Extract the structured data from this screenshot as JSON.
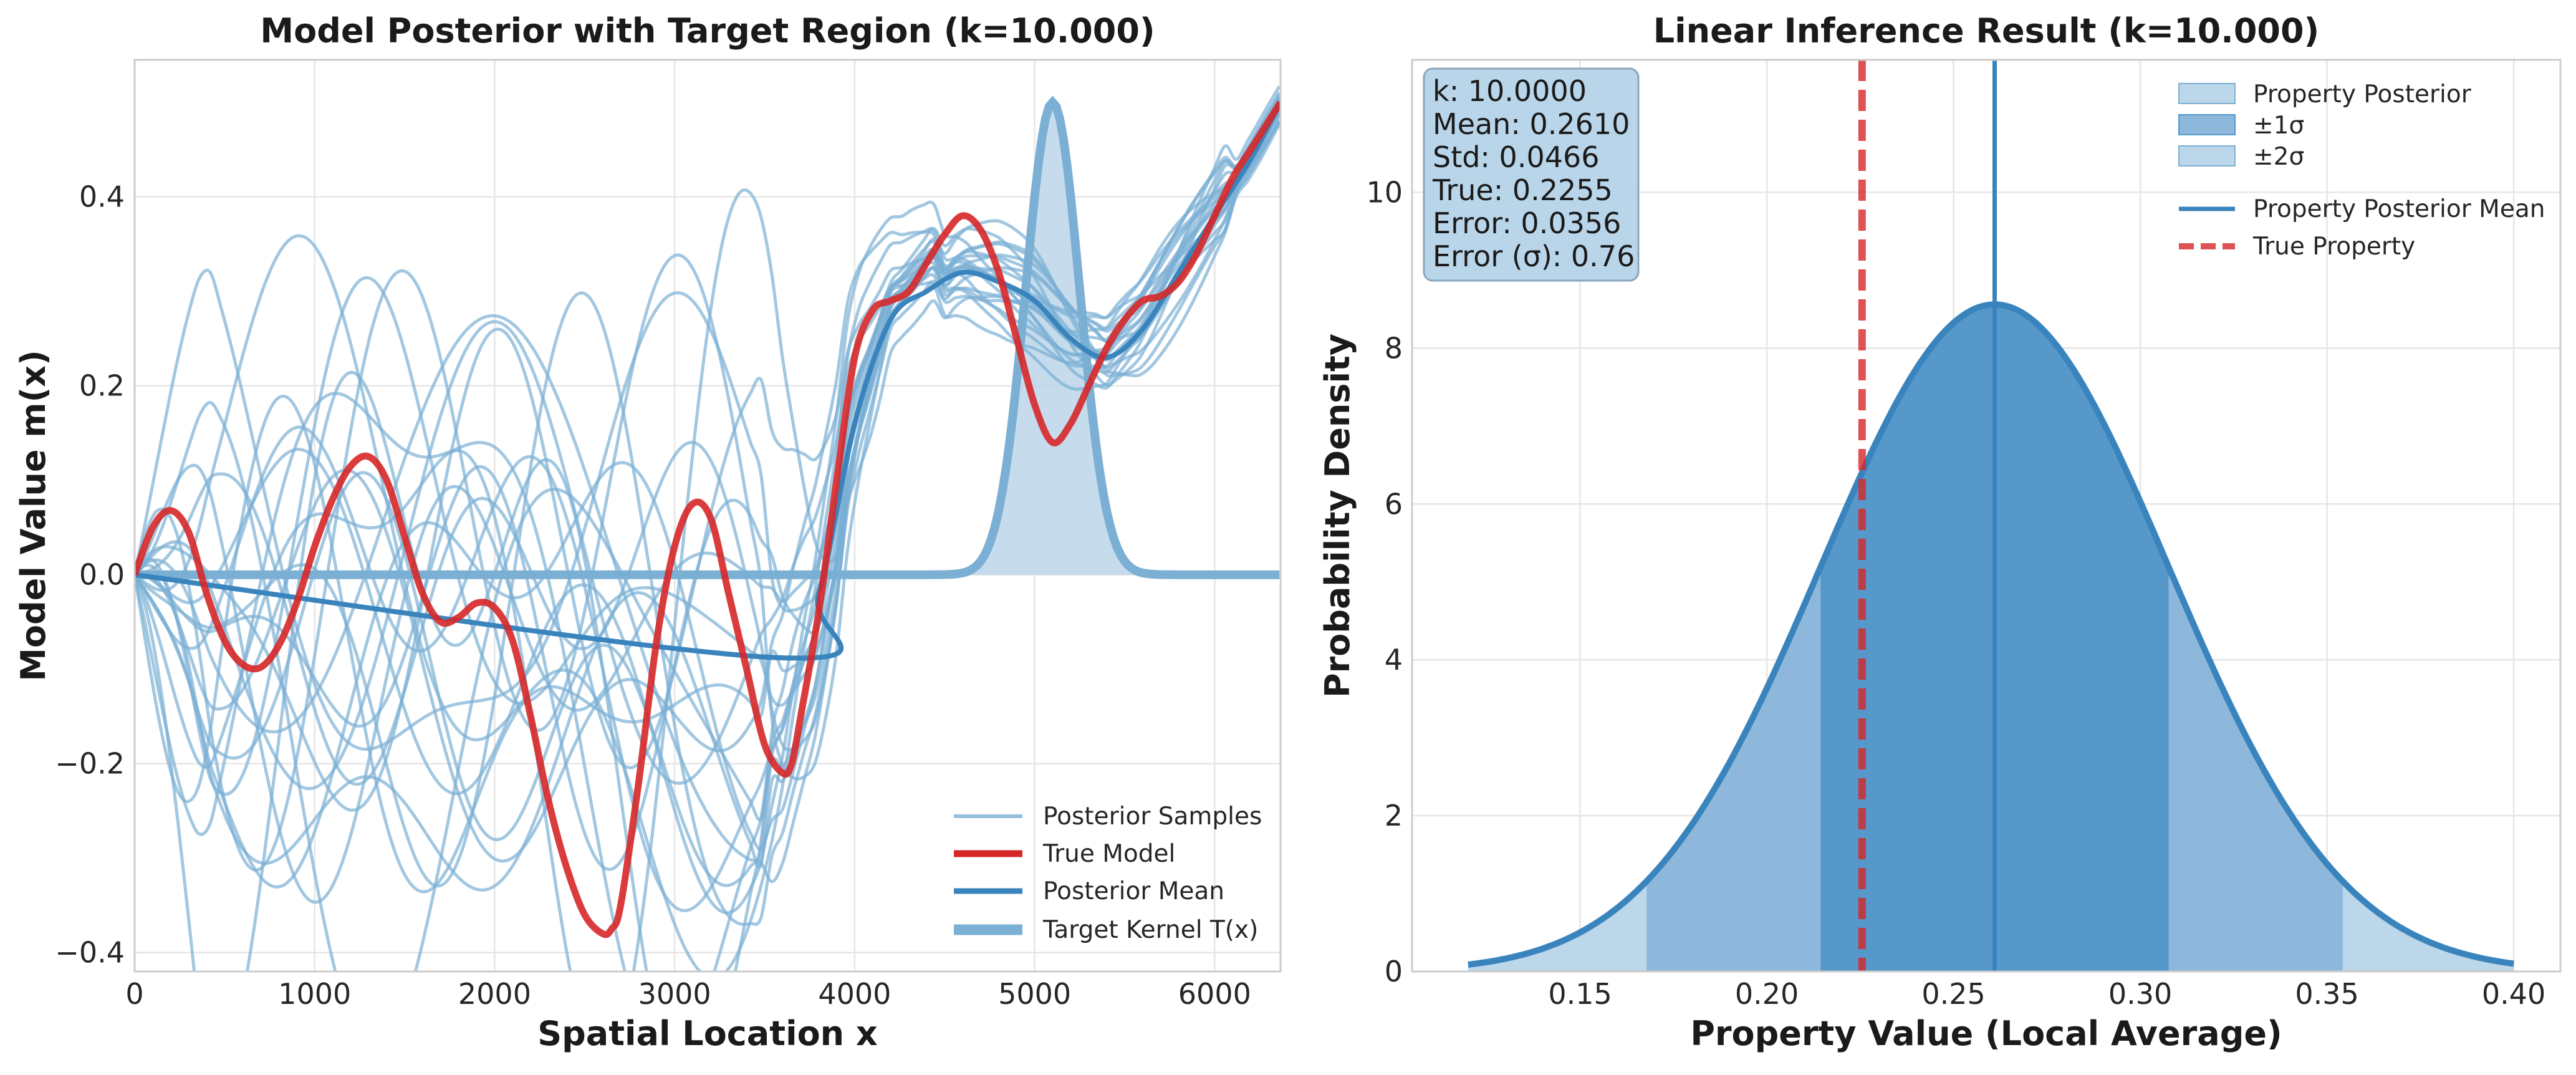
{
  "chart_data": [
    {
      "type": "line",
      "title": "Model Posterior with Target Region (k=10.000)",
      "xlabel": "Spatial Location x",
      "ylabel": "Model Value m(x)",
      "xlim": [
        0,
        6366
      ],
      "ylim": [
        -0.42,
        0.545
      ],
      "xticks": [
        0,
        1000,
        2000,
        3000,
        4000,
        5000,
        6000
      ],
      "xtick_labels": [
        "0",
        "1000",
        "2000",
        "3000",
        "4000",
        "5000",
        "6000"
      ],
      "yticks": [
        -0.4,
        -0.2,
        0.0,
        0.2,
        0.4
      ],
      "ytick_labels": [
        "−0.4",
        "−0.2",
        "0.0",
        "0.2",
        "0.4"
      ],
      "grid": true,
      "legend_position": "lower-right",
      "legend": [
        "Posterior Samples",
        "True Model",
        "Posterior Mean",
        "Target Kernel T(x)"
      ],
      "series": [
        {
          "name": "True Model",
          "color": "#d62728",
          "x": [
            0,
            100,
            200,
            300,
            400,
            500,
            600,
            700,
            800,
            900,
            1000,
            1100,
            1200,
            1300,
            1400,
            1500,
            1600,
            1700,
            1800,
            1900,
            2000,
            2100,
            2200,
            2300,
            2400,
            2500,
            2600,
            2650,
            2700,
            2800,
            2900,
            3000,
            3100,
            3200,
            3300,
            3400,
            3500,
            3600,
            3650,
            3700,
            3800,
            3900,
            4000,
            4100,
            4200,
            4300,
            4400,
            4500,
            4600,
            4700,
            4800,
            4900,
            5000,
            5100,
            5200,
            5300,
            5400,
            5500,
            5600,
            5700,
            5800,
            5900,
            6000,
            6100,
            6200,
            6366
          ],
          "y": [
            0.0,
            0.05,
            0.068,
            0.045,
            -0.02,
            -0.07,
            -0.095,
            -0.098,
            -0.075,
            -0.03,
            0.03,
            0.08,
            0.115,
            0.125,
            0.1,
            0.04,
            -0.02,
            -0.05,
            -0.045,
            -0.03,
            -0.035,
            -0.07,
            -0.15,
            -0.24,
            -0.31,
            -0.36,
            -0.38,
            -0.375,
            -0.35,
            -0.22,
            -0.07,
            0.03,
            0.075,
            0.06,
            -0.02,
            -0.1,
            -0.18,
            -0.21,
            -0.2,
            -0.15,
            -0.04,
            0.1,
            0.23,
            0.28,
            0.29,
            0.3,
            0.33,
            0.36,
            0.38,
            0.365,
            0.32,
            0.25,
            0.18,
            0.14,
            0.16,
            0.2,
            0.24,
            0.27,
            0.29,
            0.295,
            0.31,
            0.34,
            0.38,
            0.42,
            0.45,
            0.5
          ]
        },
        {
          "name": "Posterior Mean",
          "color": "#3a84bd",
          "x": [
            0,
            3600,
            3800,
            4000,
            4200,
            4400,
            4600,
            4800,
            5000,
            5200,
            5400,
            5600,
            5800,
            6000,
            6200,
            6366
          ],
          "y": [
            0.0,
            -0.088,
            -0.02,
            0.16,
            0.27,
            0.3,
            0.32,
            0.31,
            0.29,
            0.25,
            0.23,
            0.26,
            0.32,
            0.38,
            0.44,
            0.5
          ]
        },
        {
          "name": "Target Kernel T(x)",
          "color": "#7bafd4",
          "kernel_center": 5100,
          "kernel_sigma": 150,
          "kernel_peak": 0.5
        },
        {
          "name": "Posterior Samples",
          "color": "#7bafd4"
        }
      ]
    },
    {
      "type": "area",
      "title": "Linear Inference Result (k=10.000)",
      "xlabel": "Property Value (Local Average)",
      "ylabel": "Probability Density",
      "xlim": [
        0.105,
        0.4125
      ],
      "ylim": [
        0,
        11.7
      ],
      "xticks": [
        0.15,
        0.2,
        0.25,
        0.3,
        0.35,
        0.4
      ],
      "xtick_labels": [
        "0.15",
        "0.20",
        "0.25",
        "0.30",
        "0.35",
        "0.40"
      ],
      "yticks": [
        0,
        2,
        4,
        6,
        8,
        10
      ],
      "ytick_labels": [
        "0",
        "2",
        "4",
        "6",
        "8",
        "10"
      ],
      "grid": true,
      "legend_position": "top-right",
      "legend": [
        "Property Posterior",
        "±1σ",
        "±2σ",
        "Property Posterior Mean",
        "True Property"
      ],
      "distribution": {
        "mean": 0.261,
        "std": 0.0466,
        "x_range": [
          0.12,
          0.4
        ]
      },
      "true_value": 0.2255,
      "stats_box": [
        "k: 10.0000",
        "Mean: 0.2610",
        "Std: 0.0466",
        "True: 0.2255",
        "Error: 0.0356",
        "Error (σ): 0.76"
      ]
    }
  ],
  "colors": {
    "true": "#d62728",
    "mean": "#3a84bd",
    "sample": "#7bafd4",
    "fill_outer": "#bcd6ea",
    "fill_2sigma": "#8db8dc",
    "fill_1sigma": "#5598c9"
  }
}
